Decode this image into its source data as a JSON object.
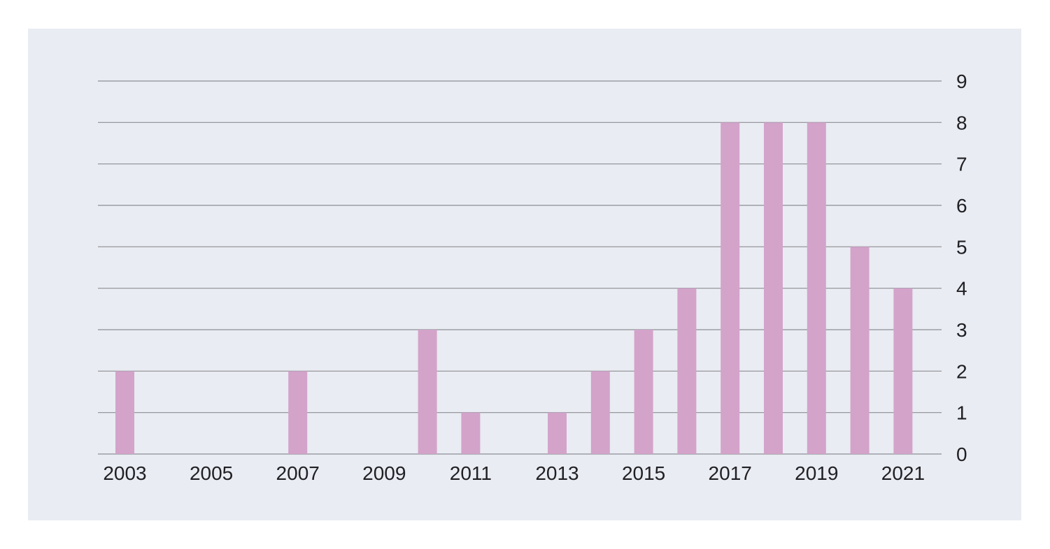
{
  "colors": {
    "panel_background": "#E9ECF2",
    "bar": "#D3A3CA",
    "gridline": "#8C8E94",
    "text": "#1F1F24"
  },
  "chart_data": {
    "type": "bar",
    "title": "",
    "xlabel": "",
    "ylabel": "",
    "categories": [
      "2003",
      "2004",
      "2005",
      "2006",
      "2007",
      "2008",
      "2009",
      "2010",
      "2011",
      "2012",
      "2013",
      "2014",
      "2015",
      "2016",
      "2017",
      "2018",
      "2019",
      "2020",
      "2021"
    ],
    "values": [
      2,
      0,
      0,
      0,
      2,
      0,
      0,
      3,
      1,
      0,
      1,
      2,
      3,
      4,
      8,
      8,
      8,
      5,
      4
    ],
    "x_tick_labels": [
      "2003",
      "2005",
      "2007",
      "2009",
      "2011",
      "2013",
      "2015",
      "2017",
      "2019",
      "2021"
    ],
    "y_tick_labels": [
      "0",
      "1",
      "2",
      "3",
      "4",
      "5",
      "6",
      "7",
      "8",
      "9"
    ],
    "ylim": [
      0,
      9
    ],
    "y_axis_position": "right",
    "grid": true,
    "legend": "none"
  }
}
